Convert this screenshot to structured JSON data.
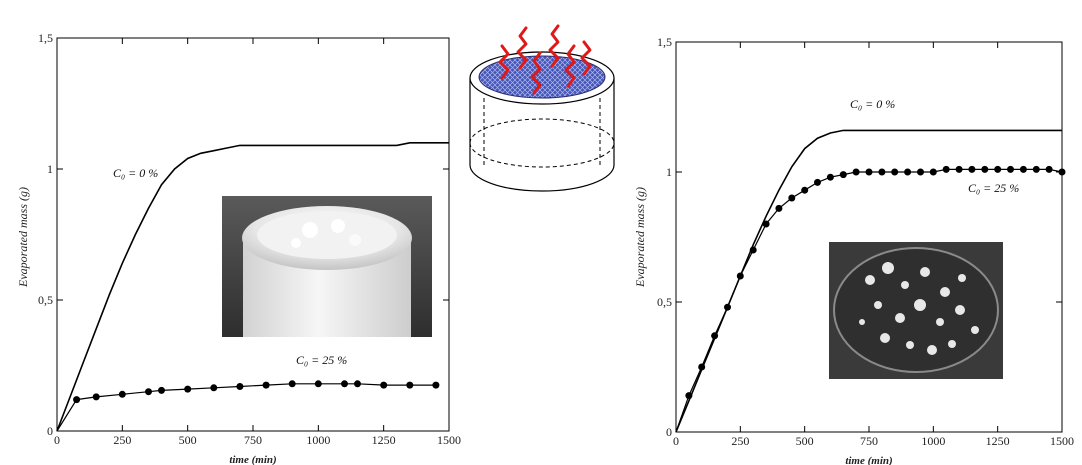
{
  "chart_data": [
    {
      "type": "line",
      "xlabel": "time (min)",
      "ylabel": "Evaporated mass (g)",
      "xlim": [
        0,
        1500
      ],
      "ylim": [
        0,
        1.5
      ],
      "x_ticks": [
        "0",
        "250",
        "500",
        "750",
        "1000",
        "1250",
        "1500"
      ],
      "y_ticks": [
        "0",
        "0,5",
        "1",
        "1,5"
      ],
      "grid": false,
      "annotations": [
        {
          "text": "C₀ = 0 %",
          "series": 0
        },
        {
          "text": "C₀ = 25 %",
          "series": 1
        }
      ],
      "series": [
        {
          "style": "line",
          "color": "#000000",
          "x": [
            0,
            50,
            100,
            150,
            200,
            250,
            300,
            350,
            400,
            450,
            500,
            550,
            600,
            650,
            700,
            750,
            800,
            900,
            1000,
            1100,
            1200,
            1300,
            1350,
            1400,
            1500
          ],
          "y": [
            0,
            0.13,
            0.26,
            0.39,
            0.52,
            0.64,
            0.75,
            0.85,
            0.94,
            1.0,
            1.04,
            1.06,
            1.07,
            1.08,
            1.09,
            1.09,
            1.09,
            1.09,
            1.09,
            1.09,
            1.09,
            1.09,
            1.1,
            1.1,
            1.1
          ]
        },
        {
          "style": "line-markers",
          "color": "#000000",
          "x": [
            0,
            75,
            150,
            250,
            350,
            400,
            500,
            600,
            700,
            800,
            900,
            1000,
            1100,
            1150,
            1250,
            1350,
            1450
          ],
          "y": [
            0,
            0.12,
            0.13,
            0.14,
            0.15,
            0.155,
            0.16,
            0.165,
            0.17,
            0.175,
            0.18,
            0.18,
            0.18,
            0.18,
            0.175,
            0.175,
            0.175
          ]
        }
      ]
    },
    {
      "type": "line",
      "xlabel": "time (min)",
      "ylabel": "Evaporated mass (g)",
      "xlim": [
        0,
        1500
      ],
      "ylim": [
        0,
        1.5
      ],
      "x_ticks": [
        "0",
        "250",
        "500",
        "750",
        "1000",
        "1250",
        "1500"
      ],
      "y_ticks": [
        "0",
        "0,5",
        "1",
        "1,5"
      ],
      "grid": false,
      "annotations": [
        {
          "text": "C₀ = 0 %",
          "series": 0
        },
        {
          "text": "C₀ = 25 %",
          "series": 1
        }
      ],
      "series": [
        {
          "style": "line",
          "color": "#000000",
          "x": [
            0,
            50,
            100,
            150,
            200,
            250,
            300,
            350,
            400,
            450,
            500,
            550,
            600,
            650,
            700,
            750,
            800,
            850,
            900,
            1000,
            1100,
            1200,
            1300,
            1400,
            1500
          ],
          "y": [
            0,
            0.12,
            0.24,
            0.36,
            0.48,
            0.6,
            0.72,
            0.83,
            0.93,
            1.02,
            1.09,
            1.13,
            1.15,
            1.16,
            1.16,
            1.16,
            1.16,
            1.16,
            1.16,
            1.16,
            1.16,
            1.16,
            1.16,
            1.16,
            1.16
          ]
        },
        {
          "style": "line-markers",
          "color": "#000000",
          "x": [
            0,
            50,
            100,
            150,
            200,
            250,
            300,
            350,
            400,
            450,
            500,
            550,
            600,
            650,
            700,
            750,
            800,
            850,
            900,
            950,
            1000,
            1050,
            1100,
            1150,
            1200,
            1250,
            1300,
            1350,
            1400,
            1450,
            1500
          ],
          "y": [
            0,
            0.14,
            0.25,
            0.37,
            0.48,
            0.6,
            0.7,
            0.8,
            0.86,
            0.9,
            0.93,
            0.96,
            0.98,
            0.99,
            1.0,
            1.0,
            1.0,
            1.0,
            1.0,
            1.0,
            1.0,
            1.01,
            1.01,
            1.01,
            1.01,
            1.01,
            1.01,
            1.01,
            1.01,
            1.01,
            1.0
          ]
        }
      ]
    }
  ]
}
